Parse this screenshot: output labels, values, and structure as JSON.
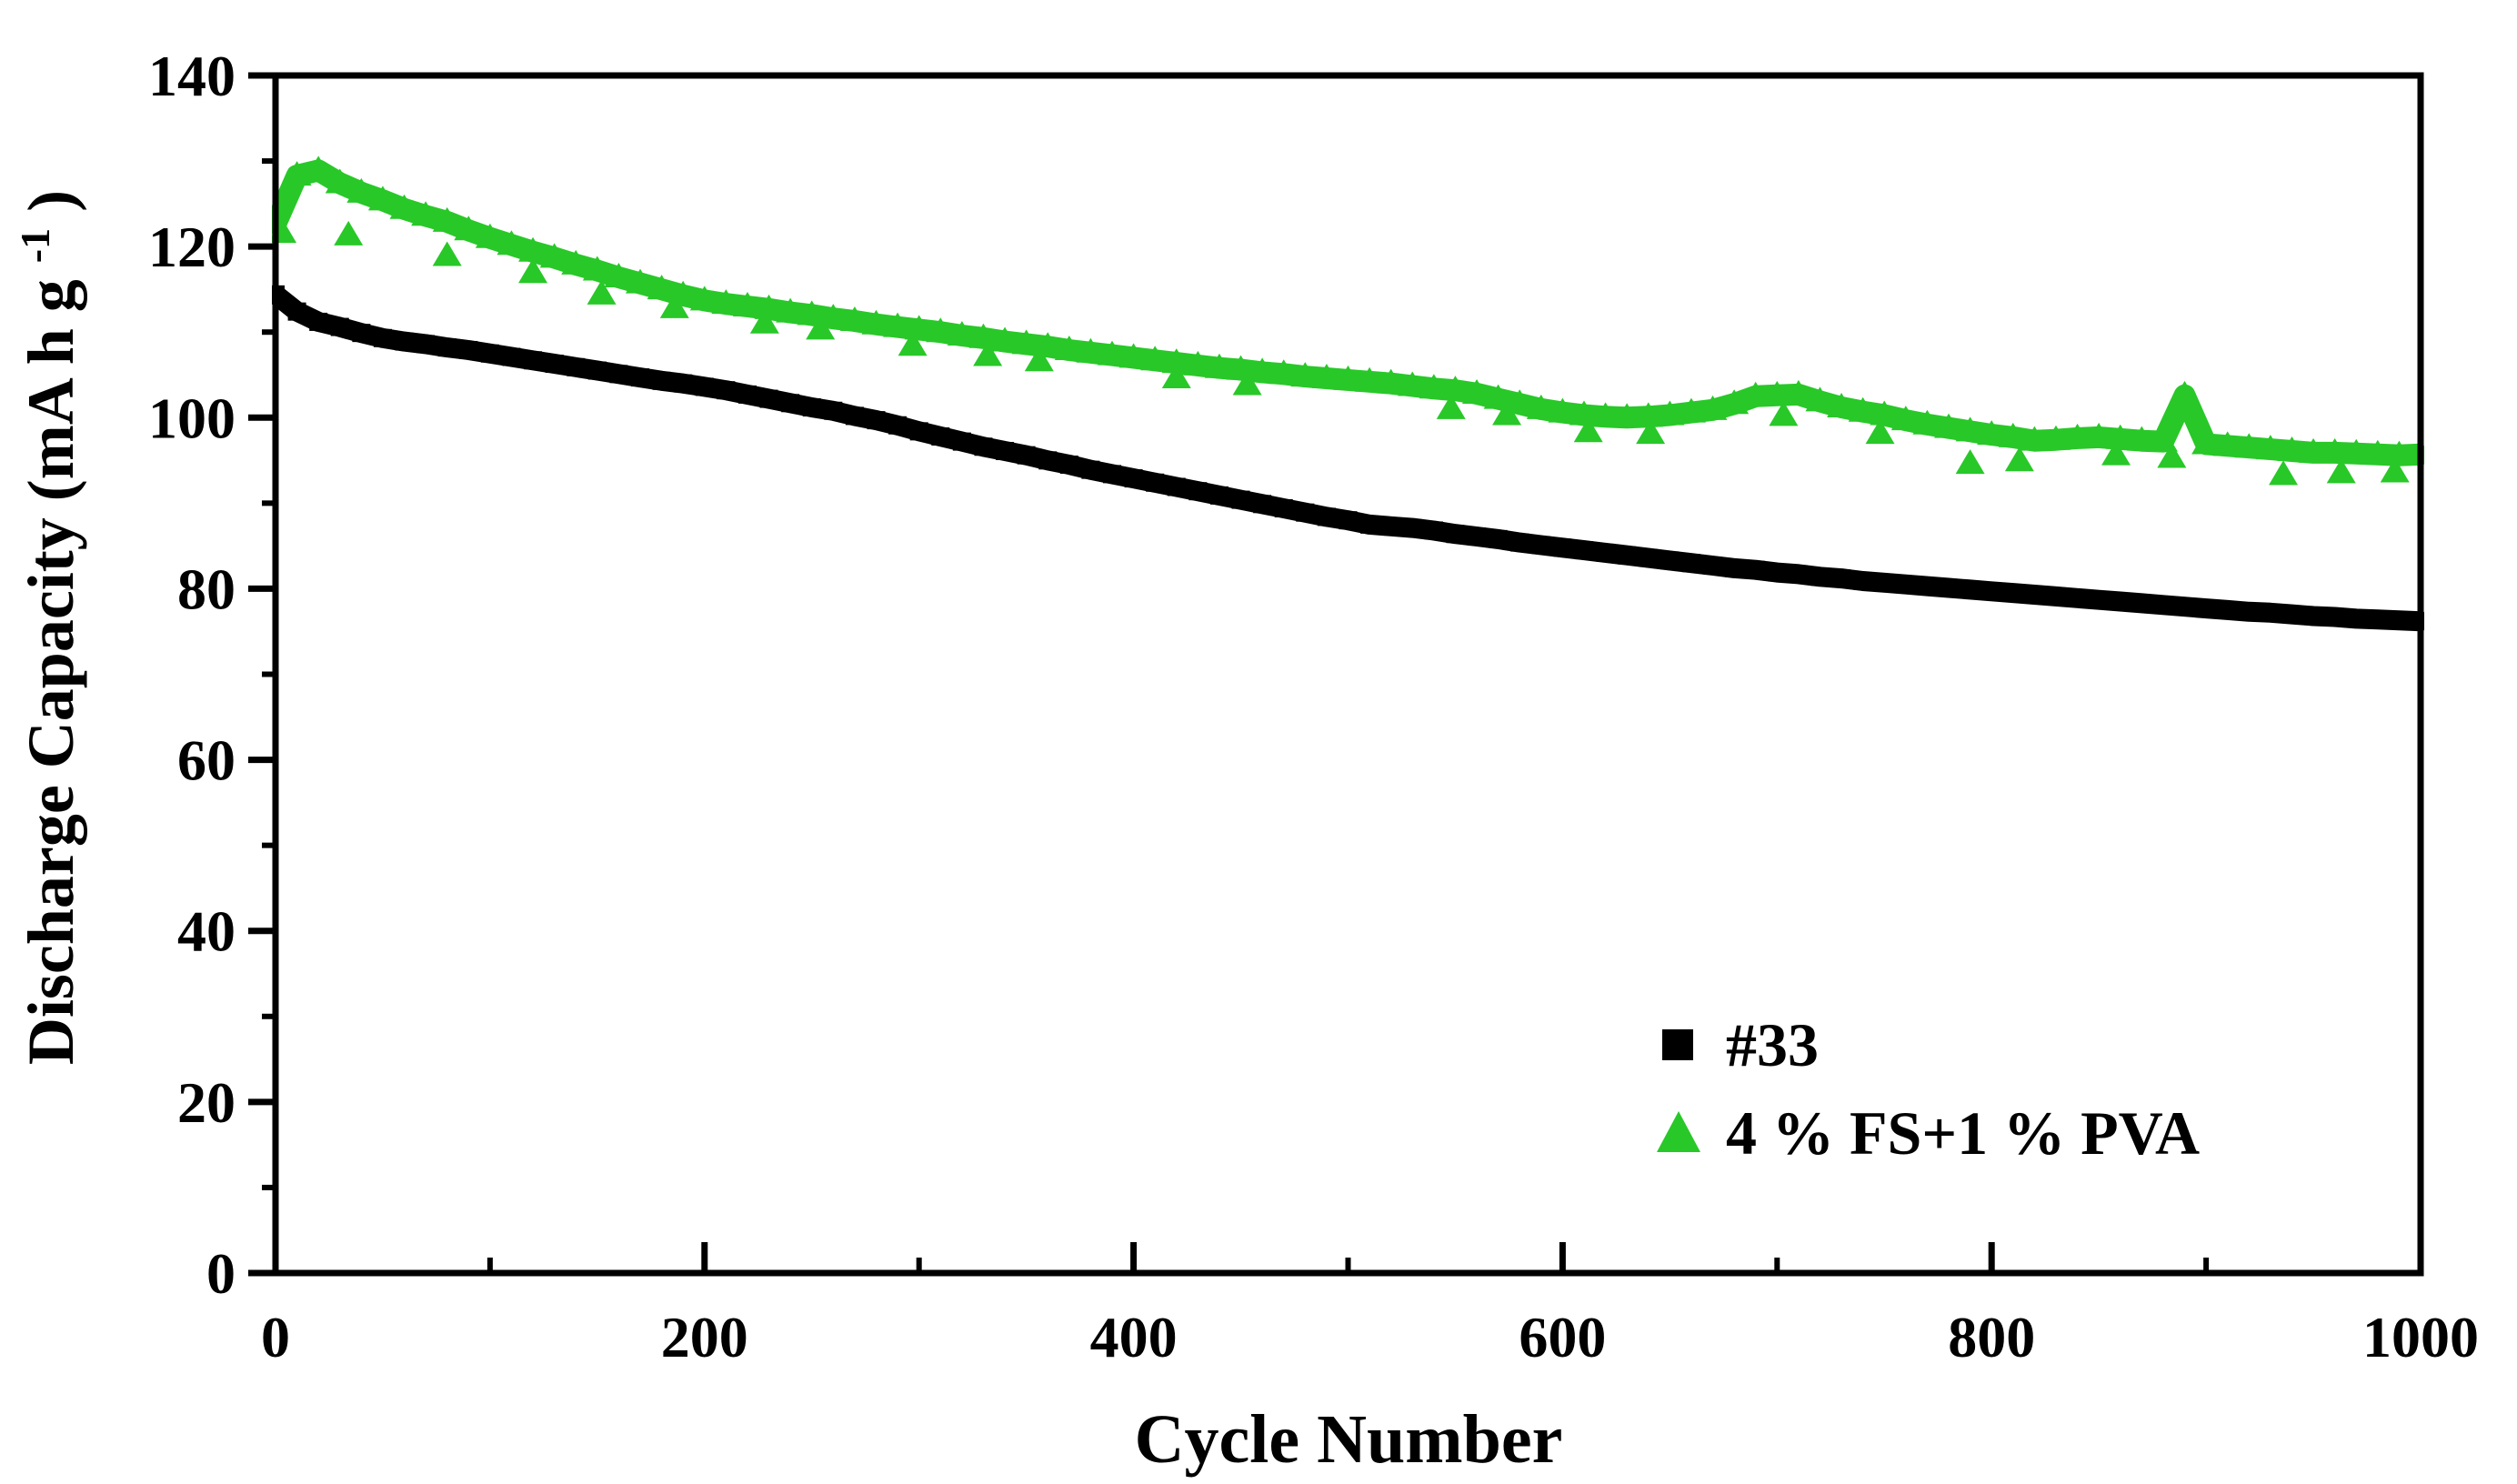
{
  "figure": {
    "background": "#ffffff",
    "frame_color": "#000000"
  },
  "chart_data": {
    "type": "scatter",
    "title": "",
    "xlabel": "Cycle Number",
    "ylabel": {
      "pre": "Discharge Capacity (mA h g",
      "sup": "-1",
      "post": ")"
    },
    "xlim": [
      0,
      1000
    ],
    "ylim": [
      0,
      140
    ],
    "grid": false,
    "legend_position": "inside-bottom-right",
    "x_ticks_major": [
      0,
      200,
      400,
      600,
      800,
      1000
    ],
    "x_ticks_minor": [
      100,
      300,
      500,
      700,
      900
    ],
    "y_ticks_major": [
      0,
      20,
      40,
      60,
      80,
      100,
      120,
      140
    ],
    "y_ticks_minor": [
      10,
      30,
      50,
      70,
      90,
      110,
      130
    ],
    "x_step": 10,
    "series": [
      {
        "name": "#33",
        "marker": "square",
        "color": "#000000",
        "values": [
          114.4,
          112.4,
          111.2,
          110.6,
          109.9,
          109.3,
          108.9,
          108.6,
          108.2,
          107.9,
          107.5,
          107.1,
          106.7,
          106.3,
          105.9,
          105.5,
          105.1,
          104.7,
          104.3,
          104.0,
          103.6,
          103.2,
          102.7,
          102.2,
          101.7,
          101.2,
          100.8,
          100.2,
          99.7,
          99.1,
          98.4,
          97.8,
          97.2,
          96.6,
          96.1,
          95.6,
          95.0,
          94.5,
          93.9,
          93.4,
          92.9,
          92.4,
          91.9,
          91.4,
          90.9,
          90.4,
          89.9,
          89.4,
          88.9,
          88.4,
          88.0,
          87.5,
          87.3,
          87.1,
          86.8,
          86.4,
          86.1,
          85.8,
          85.4,
          85.1,
          84.8,
          84.5,
          84.2,
          83.9,
          83.6,
          83.3,
          83.0,
          82.7,
          82.4,
          82.2,
          81.9,
          81.7,
          81.4,
          81.2,
          80.9,
          80.7,
          80.5,
          80.3,
          80.1,
          79.9,
          79.7,
          79.5,
          79.3,
          79.1,
          78.9,
          78.7,
          78.5,
          78.3,
          78.1,
          77.9,
          77.7,
          77.5,
          77.3,
          77.2,
          77.0,
          76.8,
          76.7,
          76.5,
          76.4,
          76.3,
          76.2
        ],
        "outliers": []
      },
      {
        "name": "4 % FS+1 % PVA",
        "marker": "triangle",
        "color": "#28C828",
        "values": [
          122.6,
          128.3,
          128.9,
          127.4,
          126.3,
          125.4,
          124.4,
          123.6,
          122.9,
          121.9,
          121.0,
          120.2,
          119.4,
          118.7,
          117.9,
          117.2,
          116.4,
          115.7,
          115.0,
          114.3,
          113.7,
          113.3,
          113.0,
          112.7,
          112.3,
          112.0,
          111.6,
          111.3,
          110.9,
          110.6,
          110.3,
          110.0,
          109.6,
          109.3,
          108.9,
          108.6,
          108.3,
          107.9,
          107.6,
          107.3,
          107.0,
          106.7,
          106.4,
          106.1,
          105.8,
          105.6,
          105.3,
          105.1,
          104.8,
          104.6,
          104.4,
          104.2,
          104.0,
          103.7,
          103.4,
          103.2,
          102.8,
          102.2,
          101.6,
          101.0,
          100.6,
          100.3,
          100.1,
          100.0,
          100.1,
          100.3,
          100.6,
          100.9,
          101.6,
          102.5,
          102.6,
          102.7,
          101.9,
          101.2,
          100.7,
          100.3,
          99.7,
          99.2,
          98.8,
          98.4,
          98.0,
          97.7,
          97.3,
          97.4,
          97.6,
          97.7,
          97.5,
          97.3,
          97.2,
          102.6,
          96.9,
          96.7,
          96.5,
          96.3,
          96.1,
          95.9,
          95.9,
          95.8,
          95.7,
          95.6,
          95.7
        ],
        "outliers": [
          [
            3,
            121.6
          ],
          [
            34,
            121.3
          ],
          [
            80,
            118.9
          ],
          [
            120,
            116.9
          ],
          [
            152,
            114.4
          ],
          [
            186,
            112.8
          ],
          [
            228,
            111.0
          ],
          [
            254,
            110.3
          ],
          [
            297,
            108.4
          ],
          [
            332,
            107.2
          ],
          [
            356,
            106.6
          ],
          [
            420,
            104.6
          ],
          [
            453,
            103.8
          ],
          [
            548,
            101.0
          ],
          [
            574,
            100.3
          ],
          [
            612,
            98.3
          ],
          [
            641,
            98.1
          ],
          [
            703,
            100.2
          ],
          [
            748,
            98.1
          ],
          [
            790,
            94.6
          ],
          [
            813,
            94.9
          ],
          [
            858,
            95.6
          ],
          [
            884,
            95.3
          ],
          [
            936,
            93.3
          ],
          [
            963,
            93.5
          ],
          [
            988,
            93.6
          ]
        ]
      }
    ]
  }
}
